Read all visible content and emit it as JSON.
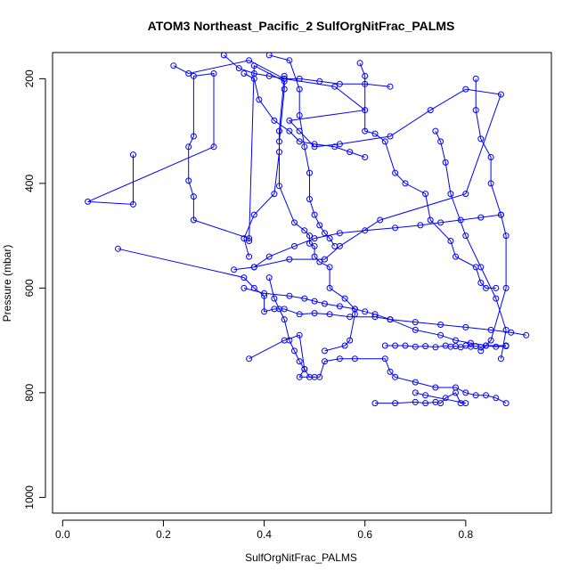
{
  "chart_data": {
    "type": "line",
    "title": "ATOM3 Northeast_Pacific_2 SulfOrgNitFrac_PALMS",
    "xlabel": "SulfOrgNitFrac_PALMS",
    "ylabel": "Pressure (mbar)",
    "xlim": [
      -0.02,
      0.97
    ],
    "ylim": [
      1030,
      150
    ],
    "y_reversed": true,
    "xticks": [
      0.0,
      0.2,
      0.4,
      0.6,
      0.8
    ],
    "xtick_labels": [
      "0.0",
      "0.2",
      "0.4",
      "0.6",
      "0.8"
    ],
    "yticks": [
      200,
      400,
      600,
      800,
      1000
    ],
    "ytick_labels": [
      "200",
      "400",
      "600",
      "800",
      "1000"
    ],
    "grid": false,
    "marker": "open-circle",
    "color": "#0000ff",
    "series": [
      {
        "x": [
          0.22,
          0.25,
          0.37,
          0.44,
          0.54,
          0.6,
          0.45,
          0.47,
          0.5,
          0.55,
          0.65,
          0.73,
          0.8,
          0.87,
          0.8,
          0.63,
          0.55,
          0.52,
          0.45,
          0.38
        ],
        "y": [
          175,
          190,
          165,
          200,
          215,
          260,
          280,
          300,
          330,
          325,
          310,
          260,
          220,
          230,
          420,
          470,
          520,
          545,
          545,
          560
        ]
      },
      {
        "x": [
          0.14,
          0.14,
          0.05,
          0.3,
          0.3,
          0.26,
          0.26,
          0.25,
          0.25,
          0.26,
          0.26,
          0.37,
          0.37,
          0.38,
          0.44,
          0.44,
          0.43,
          0.43,
          0.42,
          0.38,
          0.36,
          0.37
        ],
        "y": [
          345,
          440,
          435,
          330,
          190,
          195,
          310,
          330,
          395,
          425,
          470,
          505,
          510,
          175,
          205,
          220,
          320,
          340,
          420,
          460,
          505,
          540
        ]
      },
      {
        "x": [
          0.11,
          0.36,
          0.38,
          0.4,
          0.4,
          0.42,
          0.44,
          0.47,
          0.5,
          0.53,
          0.57,
          0.62,
          0.65,
          0.7,
          0.75,
          0.8,
          0.85,
          0.89,
          0.92
        ],
        "y": [
          525,
          580,
          600,
          615,
          645,
          640,
          640,
          650,
          648,
          650,
          655,
          655,
          660,
          665,
          670,
          675,
          680,
          685,
          690
        ]
      },
      {
        "x": [
          0.36,
          0.4,
          0.45,
          0.48,
          0.5,
          0.52,
          0.55,
          0.58,
          0.6,
          0.62,
          0.65,
          0.7,
          0.75,
          0.78,
          0.81,
          0.84,
          0.88
        ],
        "y": [
          600,
          610,
          615,
          620,
          625,
          630,
          635,
          640,
          645,
          650,
          660,
          680,
          690,
          700,
          705,
          710,
          710
        ]
      },
      {
        "x": [
          0.37,
          0.44,
          0.47,
          0.48,
          0.47,
          0.51,
          0.52,
          0.55,
          0.58,
          0.64,
          0.65,
          0.66,
          0.7,
          0.74,
          0.78,
          0.8,
          0.82,
          0.84,
          0.86,
          0.88
        ],
        "y": [
          735,
          700,
          690,
          755,
          770,
          770,
          740,
          735,
          735,
          735,
          760,
          770,
          780,
          790,
          790,
          800,
          805,
          805,
          810,
          820
        ]
      },
      {
        "x": [
          0.62,
          0.66,
          0.7,
          0.72,
          0.74,
          0.75,
          0.76,
          0.78,
          0.79,
          0.8,
          0.72,
          0.7
        ],
        "y": [
          820,
          820,
          818,
          820,
          818,
          820,
          810,
          800,
          820,
          820,
          805,
          800
        ]
      },
      {
        "x": [
          0.82,
          0.82,
          0.83,
          0.85,
          0.85,
          0.87,
          0.88,
          0.88,
          0.85,
          0.83
        ],
        "y": [
          200,
          260,
          315,
          350,
          400,
          460,
          500,
          600,
          700,
          720
        ]
      },
      {
        "x": [
          0.59,
          0.6,
          0.6,
          0.62,
          0.64,
          0.66,
          0.68,
          0.72,
          0.73,
          0.77,
          0.78,
          0.82,
          0.83,
          0.84,
          0.86
        ],
        "y": [
          170,
          195,
          300,
          305,
          320,
          380,
          400,
          420,
          470,
          510,
          540,
          560,
          590,
          600,
          600
        ]
      },
      {
        "x": [
          0.44,
          0.43,
          0.43,
          0.46,
          0.48,
          0.49,
          0.49,
          0.5,
          0.5,
          0.51,
          0.53,
          0.53,
          0.56,
          0.58,
          0.58,
          0.57,
          0.56,
          0.52
        ],
        "y": [
          195,
          300,
          405,
          475,
          490,
          500,
          515,
          520,
          540,
          550,
          560,
          600,
          620,
          640,
          650,
          700,
          710,
          720
        ]
      },
      {
        "x": [
          0.64,
          0.66,
          0.68,
          0.7,
          0.72,
          0.74,
          0.76,
          0.77,
          0.78,
          0.79,
          0.8,
          0.81,
          0.82,
          0.83,
          0.84,
          0.86,
          0.88
        ],
        "y": [
          710,
          710,
          710,
          712,
          711,
          713,
          710,
          712,
          711,
          713,
          710,
          712,
          711,
          713,
          710,
          712,
          711
        ]
      },
      {
        "x": [
          0.41,
          0.42,
          0.43,
          0.44,
          0.45,
          0.46,
          0.47,
          0.48,
          0.49,
          0.5
        ],
        "y": [
          580,
          620,
          640,
          660,
          700,
          720,
          740,
          755,
          770,
          770
        ]
      },
      {
        "x": [
          0.74,
          0.75,
          0.76,
          0.77,
          0.8,
          0.83,
          0.86,
          0.88,
          0.87
        ],
        "y": [
          300,
          320,
          360,
          420,
          500,
          560,
          620,
          680,
          735
        ]
      },
      {
        "x": [
          0.41,
          0.45,
          0.47,
          0.47,
          0.48,
          0.49,
          0.49,
          0.5,
          0.51,
          0.52,
          0.53,
          0.54
        ],
        "y": [
          155,
          165,
          220,
          270,
          330,
          380,
          430,
          460,
          480,
          495,
          505,
          520
        ]
      },
      {
        "x": [
          0.32,
          0.35,
          0.38,
          0.41,
          0.44,
          0.47,
          0.51,
          0.55,
          0.6,
          0.65
        ],
        "y": [
          155,
          180,
          190,
          195,
          200,
          200,
          205,
          210,
          210,
          215
        ]
      },
      {
        "x": [
          0.36,
          0.38,
          0.39,
          0.42,
          0.45,
          0.47,
          0.5,
          0.54,
          0.57,
          0.6
        ],
        "y": [
          190,
          200,
          240,
          280,
          300,
          320,
          325,
          330,
          340,
          350
        ]
      },
      {
        "x": [
          0.34,
          0.38,
          0.41,
          0.46,
          0.5,
          0.55,
          0.6,
          0.66,
          0.71,
          0.75,
          0.79,
          0.83,
          0.87
        ],
        "y": [
          565,
          560,
          540,
          520,
          505,
          495,
          490,
          485,
          480,
          475,
          470,
          465,
          460
        ]
      }
    ]
  }
}
